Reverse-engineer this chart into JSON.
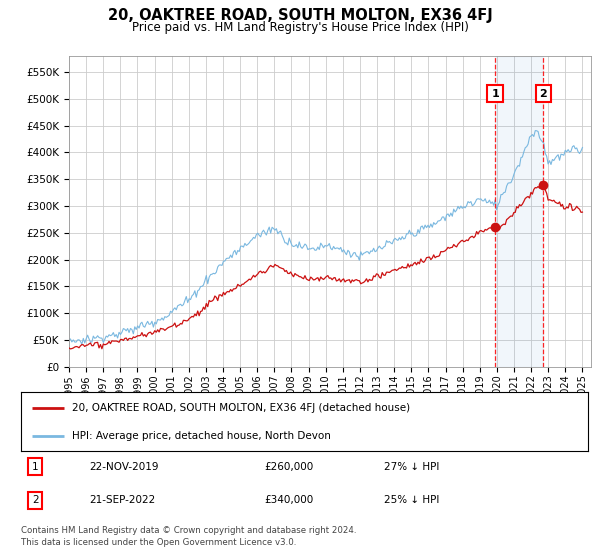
{
  "title": "20, OAKTREE ROAD, SOUTH MOLTON, EX36 4FJ",
  "subtitle": "Price paid vs. HM Land Registry's House Price Index (HPI)",
  "ylabel_ticks": [
    "£0",
    "£50K",
    "£100K",
    "£150K",
    "£200K",
    "£250K",
    "£300K",
    "£350K",
    "£400K",
    "£450K",
    "£500K",
    "£550K"
  ],
  "ytick_values": [
    0,
    50000,
    100000,
    150000,
    200000,
    250000,
    300000,
    350000,
    400000,
    450000,
    500000,
    550000
  ],
  "ylim": [
    0,
    580000
  ],
  "xlim_start": 1995.0,
  "xlim_end": 2025.5,
  "hpi_color": "#7ab8e0",
  "price_color": "#cc1111",
  "bg_color": "#ffffff",
  "grid_color": "#cccccc",
  "sale1_date": 2019.9,
  "sale1_price": 260000,
  "sale1_label": "1",
  "sale2_date": 2022.72,
  "sale2_price": 340000,
  "sale2_label": "2",
  "legend_line1": "20, OAKTREE ROAD, SOUTH MOLTON, EX36 4FJ (detached house)",
  "legend_line2": "HPI: Average price, detached house, North Devon",
  "table_row1": [
    "1",
    "22-NOV-2019",
    "£260,000",
    "27% ↓ HPI"
  ],
  "table_row2": [
    "2",
    "21-SEP-2022",
    "£340,000",
    "25% ↓ HPI"
  ],
  "footer": "Contains HM Land Registry data © Crown copyright and database right 2024.\nThis data is licensed under the Open Government Licence v3.0.",
  "xtick_labels": [
    "1995",
    "1996",
    "1997",
    "1998",
    "1999",
    "2000",
    "2001",
    "2002",
    "2003",
    "2004",
    "2005",
    "2006",
    "2007",
    "2008",
    "2009",
    "2010",
    "2011",
    "2012",
    "2013",
    "2014",
    "2015",
    "2016",
    "2017",
    "2018",
    "2019",
    "2020",
    "2021",
    "2022",
    "2023",
    "2024",
    "2025"
  ]
}
